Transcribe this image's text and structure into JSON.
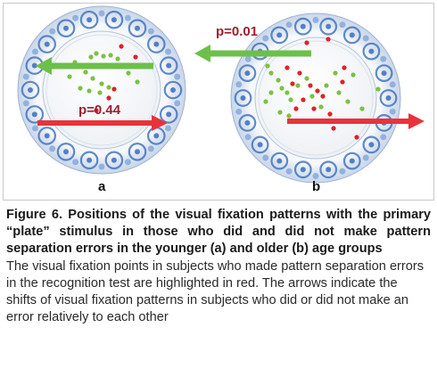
{
  "figure": {
    "panels": [
      {
        "label": "a",
        "arrows": [
          {
            "color": "#6cc04a",
            "direction": "left"
          },
          {
            "color": "#e8333b",
            "direction": "right",
            "p_value": "p=0.44"
          }
        ]
      },
      {
        "label": "b",
        "arrows": [
          {
            "color": "#6cc04a",
            "direction": "left",
            "p_value": "p=0.01"
          },
          {
            "color": "#e8333b",
            "direction": "right"
          }
        ]
      }
    ],
    "colors": {
      "no_error_points": "#7bc143",
      "error_points": "#e2202a",
      "p_value_text": "#9b2030",
      "plate_pattern": "#2f65b5"
    }
  },
  "caption": {
    "title": "Figure 6. Positions of the visual fixation patterns with the primary “plate” stimulus in those who did and did not make pattern separation errors in the younger (a) and older (b) age groups",
    "body": "The visual fixation points in subjects who made pattern separation errors in the recognition test are highlighted in red. The arrows indicate the shifts of visual fixation patterns in subjects who did or did not make an error relatively to each other"
  }
}
